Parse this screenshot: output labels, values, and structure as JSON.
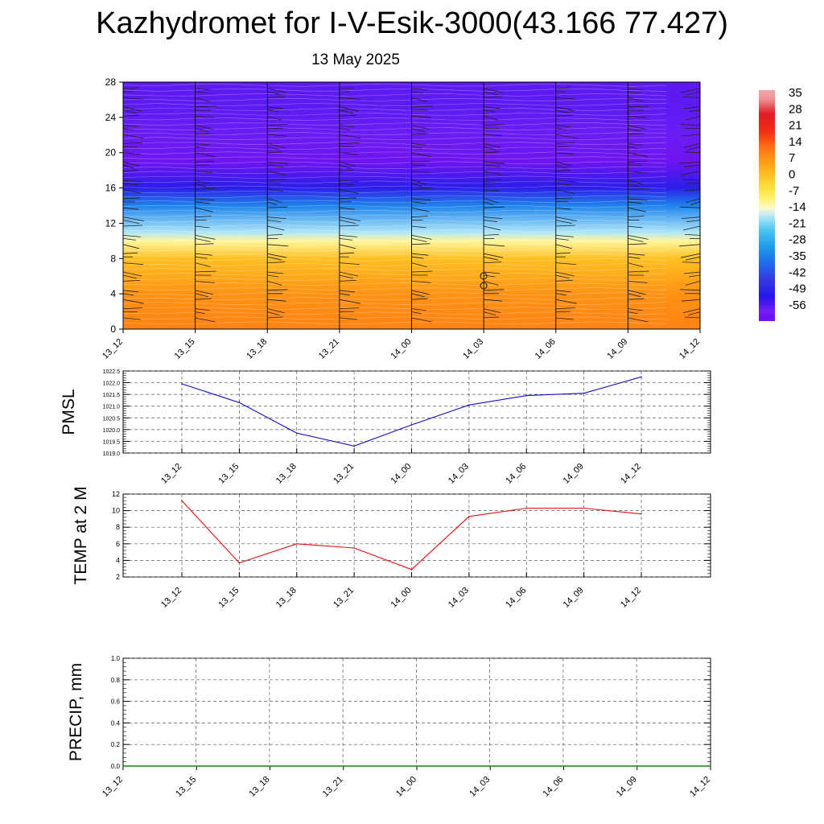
{
  "title": "Kazhydromet for I-V-Esik-3000(43.166 77.427)",
  "subtitle": "13 May 2025",
  "chart_data": [
    {
      "type": "heatmap",
      "ylim": [
        0,
        28
      ],
      "yticks": [
        "0",
        "4",
        "8",
        "12",
        "16",
        "20",
        "24",
        "28"
      ],
      "xticks": [
        "13_12",
        "13_15",
        "13_18",
        "13_21",
        "14_00",
        "14_03",
        "14_06",
        "14_09",
        "14_12"
      ],
      "color_levels": [
        "35",
        "28",
        "21",
        "14",
        "7",
        "0",
        "-7",
        "-14",
        "-21",
        "-28",
        "-35",
        "-42",
        "-49",
        "-56"
      ],
      "temperature_profile": [
        {
          "height": 0,
          "value": 11
        },
        {
          "height": 4,
          "value": 9
        },
        {
          "height": 8,
          "value": 2
        },
        {
          "height": 10,
          "value": -10
        },
        {
          "height": 11,
          "value": -16
        },
        {
          "height": 14,
          "value": -32
        },
        {
          "height": 16,
          "value": -48
        },
        {
          "height": 19,
          "value": -58
        },
        {
          "height": 22,
          "value": -55
        },
        {
          "height": 25,
          "value": -54
        },
        {
          "height": 28,
          "value": -54
        }
      ]
    },
    {
      "type": "line",
      "ylabel": "PMSL",
      "x": [
        "13_12",
        "13_15",
        "13_18",
        "13_21",
        "14_00",
        "14_03",
        "14_06",
        "14_09",
        "14_12"
      ],
      "series": [
        {
          "values": [
            1021.95,
            1021.15,
            1019.85,
            1019.3,
            1020.2,
            1021.05,
            1021.45,
            1021.55,
            1022.25
          ],
          "color": "#1010d0"
        }
      ],
      "ylim": [
        1019.0,
        1022.5
      ],
      "yticks": [
        "1019.0",
        "1019.5",
        "1020.0",
        "1020.5",
        "1021.0",
        "1021.5",
        "1022.0",
        "1022.5"
      ]
    },
    {
      "type": "line",
      "ylabel": "TEMP at 2 M",
      "x": [
        "13_12",
        "13_15",
        "13_18",
        "13_21",
        "14_00",
        "14_03",
        "14_06",
        "14_09",
        "14_12"
      ],
      "series": [
        {
          "values": [
            11.2,
            3.7,
            6.0,
            5.5,
            2.9,
            9.3,
            10.3,
            10.3,
            9.6
          ],
          "color": "#e01010"
        }
      ],
      "ylim": [
        2,
        12
      ],
      "yticks": [
        "2",
        "4",
        "6",
        "8",
        "10",
        "12"
      ]
    },
    {
      "type": "line",
      "ylabel": "PRECIP, mm",
      "x": [
        "13_12",
        "13_15",
        "13_18",
        "13_21",
        "14_00",
        "14_03",
        "14_06",
        "14_09",
        "14_12"
      ],
      "series": [
        {
          "values": [
            0,
            0,
            0,
            0,
            0,
            0,
            0,
            0,
            0
          ],
          "color": "#118811"
        }
      ],
      "ylim": [
        0,
        1
      ],
      "yticks": [
        "0.0",
        "0.2",
        "0.4",
        "0.6",
        "0.8",
        "1.0"
      ]
    }
  ]
}
